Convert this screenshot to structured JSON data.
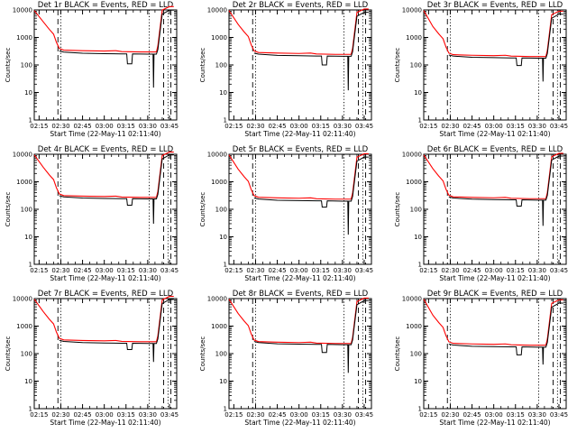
{
  "x_tick_labels": [
    "02:15",
    "02:30",
    "02:45",
    "03:00",
    "03:15",
    "03:30",
    "03:45"
  ],
  "y_tick_labels": [
    "1",
    "10",
    "100",
    "1000",
    "10000"
  ],
  "xlabel": "Start Time (22-May-11 02:11:40)",
  "ylabel": "Counts/sec",
  "colors": {
    "events": "#000000",
    "lld": "#ff0000",
    "axes": "#000000"
  },
  "panels": [
    {
      "title": "Det 1r BLACK = Events, RED = LLD",
      "events_level": 280,
      "lld_level": 330,
      "dip": 110,
      "drop": 15
    },
    {
      "title": "Det 2r BLACK = Events, RED = LLD",
      "events_level": 235,
      "lld_level": 270,
      "dip": 100,
      "drop": 12
    },
    {
      "title": "Det 3r BLACK = Events, RED = LLD",
      "events_level": 200,
      "lld_level": 225,
      "dip": 95,
      "drop": 25
    },
    {
      "title": "Det 4r BLACK = Events, RED = LLD",
      "events_level": 270,
      "lld_level": 300,
      "dip": 140,
      "drop": 30
    },
    {
      "title": "Det 5r BLACK = Events, RED = LLD",
      "events_level": 225,
      "lld_level": 260,
      "dip": 120,
      "drop": 12
    },
    {
      "title": "Det 6r BLACK = Events, RED = LLD",
      "events_level": 245,
      "lld_level": 270,
      "dip": 130,
      "drop": 25
    },
    {
      "title": "Det 7r BLACK = Events, RED = LLD",
      "events_level": 265,
      "lld_level": 300,
      "dip": 140,
      "drop": 50
    },
    {
      "title": "Det 8r BLACK = Events, RED = LLD",
      "events_level": 240,
      "lld_level": 260,
      "dip": 110,
      "drop": 20
    },
    {
      "title": "Det 9r BLACK = Events, RED = LLD",
      "events_level": 195,
      "lld_level": 225,
      "dip": 90,
      "drop": 40
    }
  ],
  "chart_data": {
    "type": "line",
    "xlabel": "Start Time (22-May-11 02:11:40)",
    "ylabel": "Counts/sec",
    "yscale": "log",
    "ylim": [
      1,
      10000
    ],
    "xlim": [
      "02:11:40",
      "03:50"
    ],
    "series": [
      {
        "name": "Events",
        "color": "black"
      },
      {
        "name": "LLD",
        "color": "red"
      }
    ],
    "shape_x": [
      "02:11:40",
      "02:18",
      "02:22",
      "02:25",
      "02:27",
      "02:29",
      "02:32",
      "02:45",
      "03:00",
      "03:12",
      "03:25",
      "03:36",
      "03:37",
      "03:40",
      "03:45",
      "03:48"
    ],
    "shape_lld_relative": [
      null,
      11.0,
      6.0,
      4.0,
      2.0,
      1.2,
      1.05,
      1.0,
      0.97,
      0.93,
      0.9,
      0.9,
      1.5,
      30.0,
      40.0,
      40.0
    ],
    "events_shape_relative": [
      null,
      null,
      null,
      null,
      null,
      1.1,
      1.0,
      0.9,
      0.88,
      0.85,
      0.85,
      0.85,
      1.3,
      25.0,
      35.0,
      35.0
    ],
    "events_dip_x": [
      "03:16",
      "03:19"
    ],
    "events_drop_x": "03:34",
    "vertical_lines": [
      {
        "x": "02:28",
        "style": "dashed"
      },
      {
        "x": "02:30",
        "style": "dotted"
      },
      {
        "x": "03:31",
        "style": "dotted"
      },
      {
        "x": "03:41",
        "style": "dashed"
      },
      {
        "x": "03:44",
        "style": "dotted"
      },
      {
        "x": "03:46",
        "style": "dashed"
      }
    ],
    "panel_titles": [
      "Det 1r BLACK = Events, RED = LLD",
      "Det 2r BLACK = Events, RED = LLD",
      "Det 3r BLACK = Events, RED = LLD",
      "Det 4r BLACK = Events, RED = LLD",
      "Det 5r BLACK = Events, RED = LLD",
      "Det 6r BLACK = Events, RED = LLD",
      "Det 7r BLACK = Events, RED = LLD",
      "Det 8r BLACK = Events, RED = LLD",
      "Det 9r BLACK = Events, RED = LLD"
    ]
  }
}
